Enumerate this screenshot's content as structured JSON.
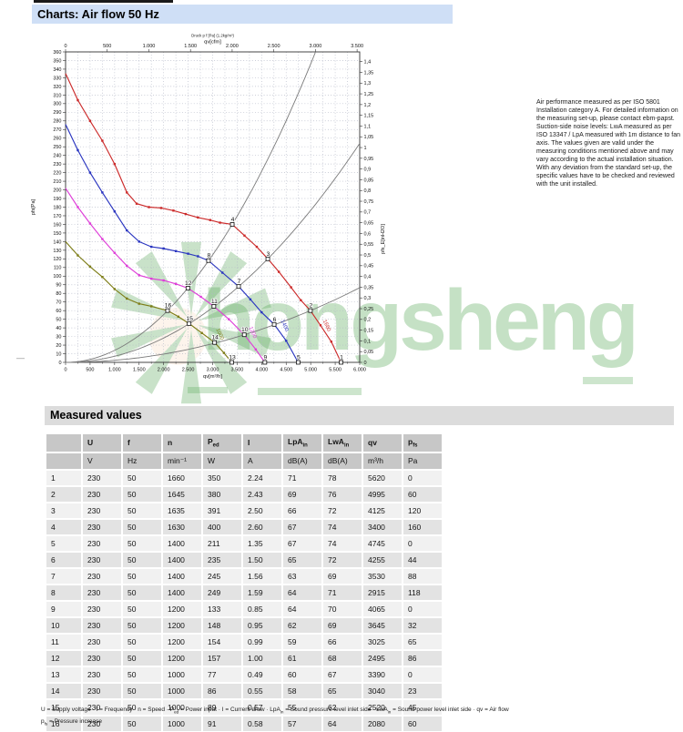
{
  "header": {
    "title": "Charts: Air flow 50 Hz"
  },
  "watermark": {
    "text": "hongsheng"
  },
  "notes": "Air performance measured as per ISO 5801 Installation category A. For detailed information on the measuring set-up, please contact ebm-papst. Suction-side noise levels: LwA measured as per ISO 13347 / LpA measured with 1m distance to fan axis. The values given are valid under the measuring conditions mentioned above and may vary according to the actual installation situation. With any deviation from the standard set-up, the specific values have to be checked and reviewed with the unit installed.",
  "chart_data": {
    "type": "line",
    "title": "Air flow 50 Hz",
    "axes": {
      "bottom": {
        "label": "qv[m³/h]",
        "min": 0,
        "max": 6000,
        "step": 500,
        "grid_step": 250
      },
      "top": {
        "label": "qv[cfm]",
        "note": "Druck p f [Pa] (1.2kg/m³)",
        "min": 0,
        "max": 3500,
        "step": 500,
        "cfm_per_m3h": 0.58858
      },
      "left": {
        "label": "pfs[Pa]",
        "min": 0,
        "max": 360,
        "step": 10
      },
      "right": {
        "label": "pfs_E[inH2O]",
        "min": 0,
        "max": 1.4,
        "step": 0.05,
        "pa_per_inh2o": 249.089
      }
    },
    "fan_curves": [
      {
        "name": "1660 min-1",
        "label": "1660",
        "color": "#cc2b2b",
        "label_at": [
          5300,
          42
        ],
        "points": [
          [
            0,
            335
          ],
          [
            250,
            304
          ],
          [
            500,
            280
          ],
          [
            750,
            257
          ],
          [
            1000,
            230
          ],
          [
            1250,
            197
          ],
          [
            1450,
            184
          ],
          [
            1700,
            180
          ],
          [
            1950,
            179
          ],
          [
            2200,
            176
          ],
          [
            2450,
            172
          ],
          [
            2700,
            168
          ],
          [
            2950,
            165
          ],
          [
            3150,
            162
          ],
          [
            3400,
            160
          ],
          [
            3650,
            147
          ],
          [
            3900,
            134
          ],
          [
            4125,
            120
          ],
          [
            4350,
            105
          ],
          [
            4600,
            87
          ],
          [
            4800,
            72
          ],
          [
            4995,
            60
          ],
          [
            5200,
            43
          ],
          [
            5420,
            24
          ],
          [
            5620,
            0
          ]
        ]
      },
      {
        "name": "1400 min-1",
        "label": "1400",
        "color": "#2a35c0",
        "label_at": [
          4440,
          42
        ],
        "points": [
          [
            0,
            276
          ],
          [
            250,
            246
          ],
          [
            500,
            220
          ],
          [
            750,
            197
          ],
          [
            1000,
            175
          ],
          [
            1250,
            153
          ],
          [
            1500,
            140
          ],
          [
            1750,
            134
          ],
          [
            2000,
            132
          ],
          [
            2250,
            129
          ],
          [
            2500,
            126
          ],
          [
            2700,
            123
          ],
          [
            2915,
            118
          ],
          [
            3200,
            104
          ],
          [
            3530,
            88
          ],
          [
            3770,
            73
          ],
          [
            4000,
            58
          ],
          [
            4255,
            44
          ],
          [
            4500,
            25
          ],
          [
            4745,
            0
          ]
        ]
      },
      {
        "name": "1200 min-1",
        "label": "1200",
        "color": "#de3ed8",
        "label_at": [
          3790,
          34
        ],
        "points": [
          [
            0,
            202
          ],
          [
            250,
            180
          ],
          [
            500,
            161
          ],
          [
            750,
            143
          ],
          [
            1000,
            127
          ],
          [
            1250,
            112
          ],
          [
            1500,
            101
          ],
          [
            1750,
            97
          ],
          [
            2000,
            95
          ],
          [
            2250,
            91
          ],
          [
            2495,
            86
          ],
          [
            2760,
            76
          ],
          [
            3025,
            65
          ],
          [
            3330,
            50
          ],
          [
            3645,
            32
          ],
          [
            3880,
            15
          ],
          [
            4065,
            0
          ]
        ]
      },
      {
        "name": "1000 min-1",
        "label": "1000",
        "color": "#7d7d17",
        "label_at": [
          3120,
          32
        ],
        "points": [
          [
            0,
            140
          ],
          [
            250,
            124
          ],
          [
            500,
            111
          ],
          [
            750,
            99
          ],
          [
            1000,
            85
          ],
          [
            1250,
            74
          ],
          [
            1500,
            68
          ],
          [
            1750,
            65
          ],
          [
            2080,
            60
          ],
          [
            2300,
            53
          ],
          [
            2520,
            45
          ],
          [
            2780,
            34
          ],
          [
            3040,
            23
          ],
          [
            3230,
            11
          ],
          [
            3390,
            0
          ]
        ]
      }
    ],
    "system_curves": [
      {
        "k": 1.3841e-05
      },
      {
        "k": 7.052e-06
      },
      {
        "k": 2.4048e-06
      }
    ],
    "operating_points": [
      {
        "no": 1,
        "qv": 5620,
        "pfs": 0
      },
      {
        "no": 2,
        "qv": 4995,
        "pfs": 60
      },
      {
        "no": 3,
        "qv": 4125,
        "pfs": 120
      },
      {
        "no": 4,
        "qv": 3400,
        "pfs": 160
      },
      {
        "no": 5,
        "qv": 4745,
        "pfs": 0
      },
      {
        "no": 6,
        "qv": 4255,
        "pfs": 44
      },
      {
        "no": 7,
        "qv": 3530,
        "pfs": 88
      },
      {
        "no": 8,
        "qv": 2915,
        "pfs": 118
      },
      {
        "no": 9,
        "qv": 4065,
        "pfs": 0
      },
      {
        "no": 10,
        "qv": 3645,
        "pfs": 32
      },
      {
        "no": 11,
        "qv": 3025,
        "pfs": 65
      },
      {
        "no": 12,
        "qv": 2495,
        "pfs": 86
      },
      {
        "no": 13,
        "qv": 3390,
        "pfs": 0
      },
      {
        "no": 14,
        "qv": 3040,
        "pfs": 23
      },
      {
        "no": 15,
        "qv": 2520,
        "pfs": 45
      },
      {
        "no": 16,
        "qv": 2080,
        "pfs": 60
      }
    ]
  },
  "measured_values": {
    "title": "Measured values",
    "columns": [
      {
        "m": "",
        "s": ""
      },
      {
        "m": "U",
        "s": ""
      },
      {
        "m": "f",
        "s": ""
      },
      {
        "m": "n",
        "s": ""
      },
      {
        "m": "P",
        "s": "ed"
      },
      {
        "m": "I",
        "s": ""
      },
      {
        "m": "LpA",
        "s": "in"
      },
      {
        "m": "LwA",
        "s": "in"
      },
      {
        "m": "qv",
        "s": ""
      },
      {
        "m": "p",
        "s": "fs"
      }
    ],
    "units": [
      "",
      "V",
      "Hz",
      "min⁻¹",
      "W",
      "A",
      "dB(A)",
      "dB(A)",
      "m³/h",
      "Pa"
    ],
    "rows": [
      [
        "1",
        "230",
        "50",
        "1660",
        "350",
        "2.24",
        "71",
        "78",
        "5620",
        "0"
      ],
      [
        "2",
        "230",
        "50",
        "1645",
        "380",
        "2.43",
        "69",
        "76",
        "4995",
        "60"
      ],
      [
        "3",
        "230",
        "50",
        "1635",
        "391",
        "2.50",
        "66",
        "72",
        "4125",
        "120"
      ],
      [
        "4",
        "230",
        "50",
        "1630",
        "400",
        "2.60",
        "67",
        "74",
        "3400",
        "160"
      ],
      [
        "5",
        "230",
        "50",
        "1400",
        "211",
        "1.35",
        "67",
        "74",
        "4745",
        "0"
      ],
      [
        "6",
        "230",
        "50",
        "1400",
        "235",
        "1.50",
        "65",
        "72",
        "4255",
        "44"
      ],
      [
        "7",
        "230",
        "50",
        "1400",
        "245",
        "1.56",
        "63",
        "69",
        "3530",
        "88"
      ],
      [
        "8",
        "230",
        "50",
        "1400",
        "249",
        "1.59",
        "64",
        "71",
        "2915",
        "118"
      ],
      [
        "9",
        "230",
        "50",
        "1200",
        "133",
        "0.85",
        "64",
        "70",
        "4065",
        "0"
      ],
      [
        "10",
        "230",
        "50",
        "1200",
        "148",
        "0.95",
        "62",
        "69",
        "3645",
        "32"
      ],
      [
        "11",
        "230",
        "50",
        "1200",
        "154",
        "0.99",
        "59",
        "66",
        "3025",
        "65"
      ],
      [
        "12",
        "230",
        "50",
        "1200",
        "157",
        "1.00",
        "61",
        "68",
        "2495",
        "86"
      ],
      [
        "13",
        "230",
        "50",
        "1000",
        "77",
        "0.49",
        "60",
        "67",
        "3390",
        "0"
      ],
      [
        "14",
        "230",
        "50",
        "1000",
        "86",
        "0.55",
        "58",
        "65",
        "3040",
        "23"
      ],
      [
        "15",
        "230",
        "50",
        "1000",
        "89",
        "0.57",
        "55",
        "62",
        "2520",
        "45"
      ],
      [
        "16",
        "230",
        "50",
        "1000",
        "91",
        "0.58",
        "57",
        "64",
        "2080",
        "60"
      ]
    ]
  },
  "footer": {
    "line1": [
      {
        "t": "U = Supply voltage · f = Frequency · n = Speed · P"
      },
      {
        "s": "ed"
      },
      {
        "t": " = Power input · I = Current draw · LpA"
      },
      {
        "s": "in"
      },
      {
        "t": " = Sound pressure level inlet side · LwA"
      },
      {
        "s": "in"
      },
      {
        "t": " = Sound power level inlet side · qv = Air flow"
      }
    ],
    "line2": [
      {
        "t": "p"
      },
      {
        "s": "fs"
      },
      {
        "t": " = Pressure increase"
      }
    ]
  }
}
